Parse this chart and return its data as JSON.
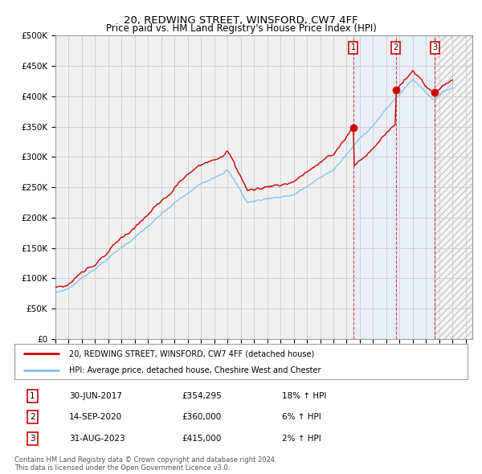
{
  "title": "20, REDWING STREET, WINSFORD, CW7 4FF",
  "subtitle": "Price paid vs. HM Land Registry's House Price Index (HPI)",
  "ylabel_ticks": [
    "£0",
    "£50K",
    "£100K",
    "£150K",
    "£200K",
    "£250K",
    "£300K",
    "£350K",
    "£400K",
    "£450K",
    "£500K"
  ],
  "ytick_values": [
    0,
    50000,
    100000,
    150000,
    200000,
    250000,
    300000,
    350000,
    400000,
    450000,
    500000
  ],
  "ylim": [
    0,
    500000
  ],
  "xlim_start": 1995.0,
  "xlim_end": 2026.5,
  "sale_dates": [
    2017.5,
    2020.71,
    2023.67
  ],
  "sale_labels": [
    "1",
    "2",
    "3"
  ],
  "sale_prices": [
    354295,
    360000,
    415000
  ],
  "sale_date_strs": [
    "30-JUN-2017",
    "14-SEP-2020",
    "31-AUG-2023"
  ],
  "sale_pct": [
    "18%",
    "6%",
    "2%"
  ],
  "hpi_color": "#7bbfea",
  "price_color": "#cc0000",
  "grid_color": "#cccccc",
  "bg_color": "#f0f0f0",
  "legend_label_price": "20, REDWING STREET, WINSFORD, CW7 4FF (detached house)",
  "legend_label_hpi": "HPI: Average price, detached house, Cheshire West and Chester",
  "footer": "Contains HM Land Registry data © Crown copyright and database right 2024.\nThis data is licensed under the Open Government Licence v3.0.",
  "shade_color": "#dceeff",
  "hatch_color": "#c8c8c8"
}
